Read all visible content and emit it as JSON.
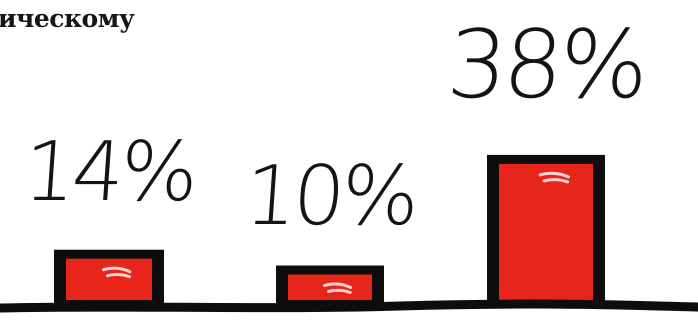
{
  "header_fragment": "ически",
  "chart_data": {
    "type": "bar",
    "title": "",
    "title_fragment": "ическому",
    "categories": [
      "",
      "",
      ""
    ],
    "values": [
      14,
      10,
      38
    ],
    "value_labels": [
      "14%",
      "10%",
      "38%"
    ],
    "unit": "%",
    "xlabel": "",
    "ylabel": "",
    "ylim": [
      0,
      40
    ],
    "grid": false,
    "legend": "none",
    "colors": {
      "bar_fill": "#e8251a",
      "bar_outline": "#0d0d0d",
      "highlight": "#ffd4d0",
      "baseline": "#0d0d0d",
      "text": "#141414",
      "background": "#ffffff"
    }
  }
}
